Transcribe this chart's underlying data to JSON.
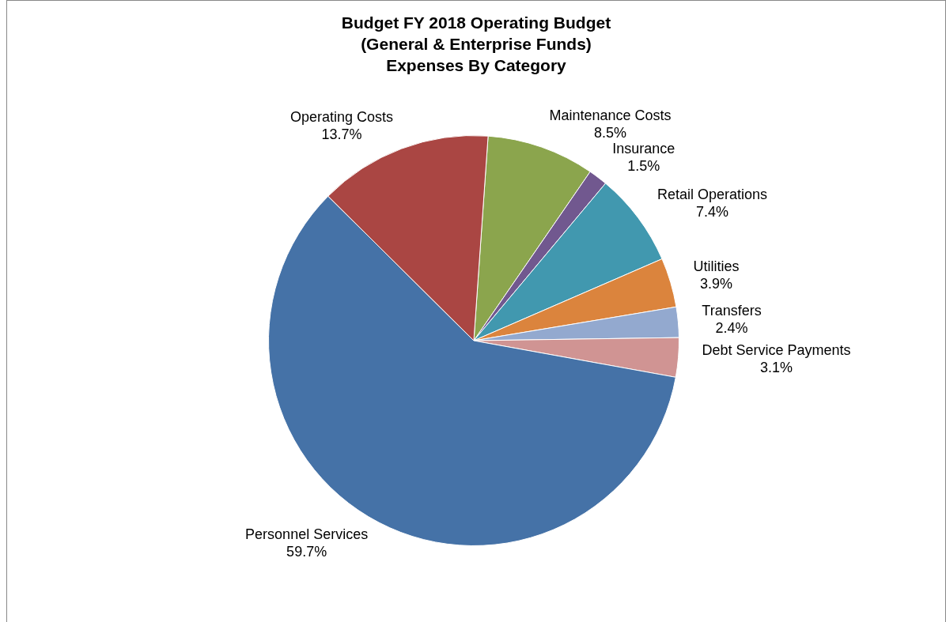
{
  "chart_data": {
    "type": "pie",
    "title": "Budget FY 2018 Operating Budget\n(General & Enterprise Funds)",
    "subtitle": "Expenses By Category",
    "categories": [
      "Maintenance Costs",
      "Insurance",
      "Retail Operations",
      "Utilities",
      "Transfers",
      "Debt Service Payments",
      "Personnel Services",
      "Operating Costs"
    ],
    "values": [
      8.5,
      1.5,
      7.4,
      3.9,
      2.4,
      3.1,
      59.7,
      13.7
    ],
    "value_labels": [
      "8.5%",
      "1.5%",
      "7.4%",
      "3.9%",
      "2.4%",
      "3.1%",
      "59.7%",
      "13.7%"
    ],
    "colors": [
      "#8ba54d",
      "#71588f",
      "#4198af",
      "#db843d",
      "#93a9cf",
      "#d09493",
      "#4572a7",
      "#aa4643"
    ],
    "legend": false
  }
}
